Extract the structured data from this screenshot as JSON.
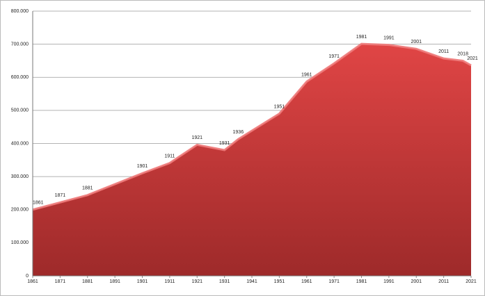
{
  "chart_data": {
    "type": "area",
    "x": [
      1861,
      1871,
      1881,
      1901,
      1911,
      1921,
      1931,
      1936,
      1951,
      1961,
      1971,
      1981,
      1991,
      2001,
      2011,
      2018,
      2021
    ],
    "values": [
      200000,
      222000,
      244000,
      310000,
      341000,
      396000,
      380000,
      413000,
      490000,
      587000,
      642000,
      701000,
      698000,
      686000,
      657000,
      650000,
      636000
    ],
    "color": "#d43f3f",
    "xlim": [
      1861,
      2021
    ],
    "xticks": [
      1861,
      1871,
      1881,
      1891,
      1901,
      1911,
      1921,
      1931,
      1941,
      1951,
      1961,
      1971,
      1981,
      1991,
      2001,
      2011,
      2021
    ],
    "ylim": [
      0,
      800000
    ],
    "yticks": [
      0,
      {
        "value": 100000,
        "label": "100.000"
      },
      {
        "value": 200000,
        "label": "200.000"
      },
      {
        "value": 300000,
        "label": "300.000"
      },
      {
        "value": 400000,
        "label": "400.000"
      },
      {
        "value": 500000,
        "label": "500.000"
      },
      {
        "value": 600000,
        "label": "600.000"
      },
      {
        "value": 700000,
        "label": "700.000"
      },
      {
        "value": 800000,
        "label": "800.000"
      }
    ],
    "grid": true
  }
}
